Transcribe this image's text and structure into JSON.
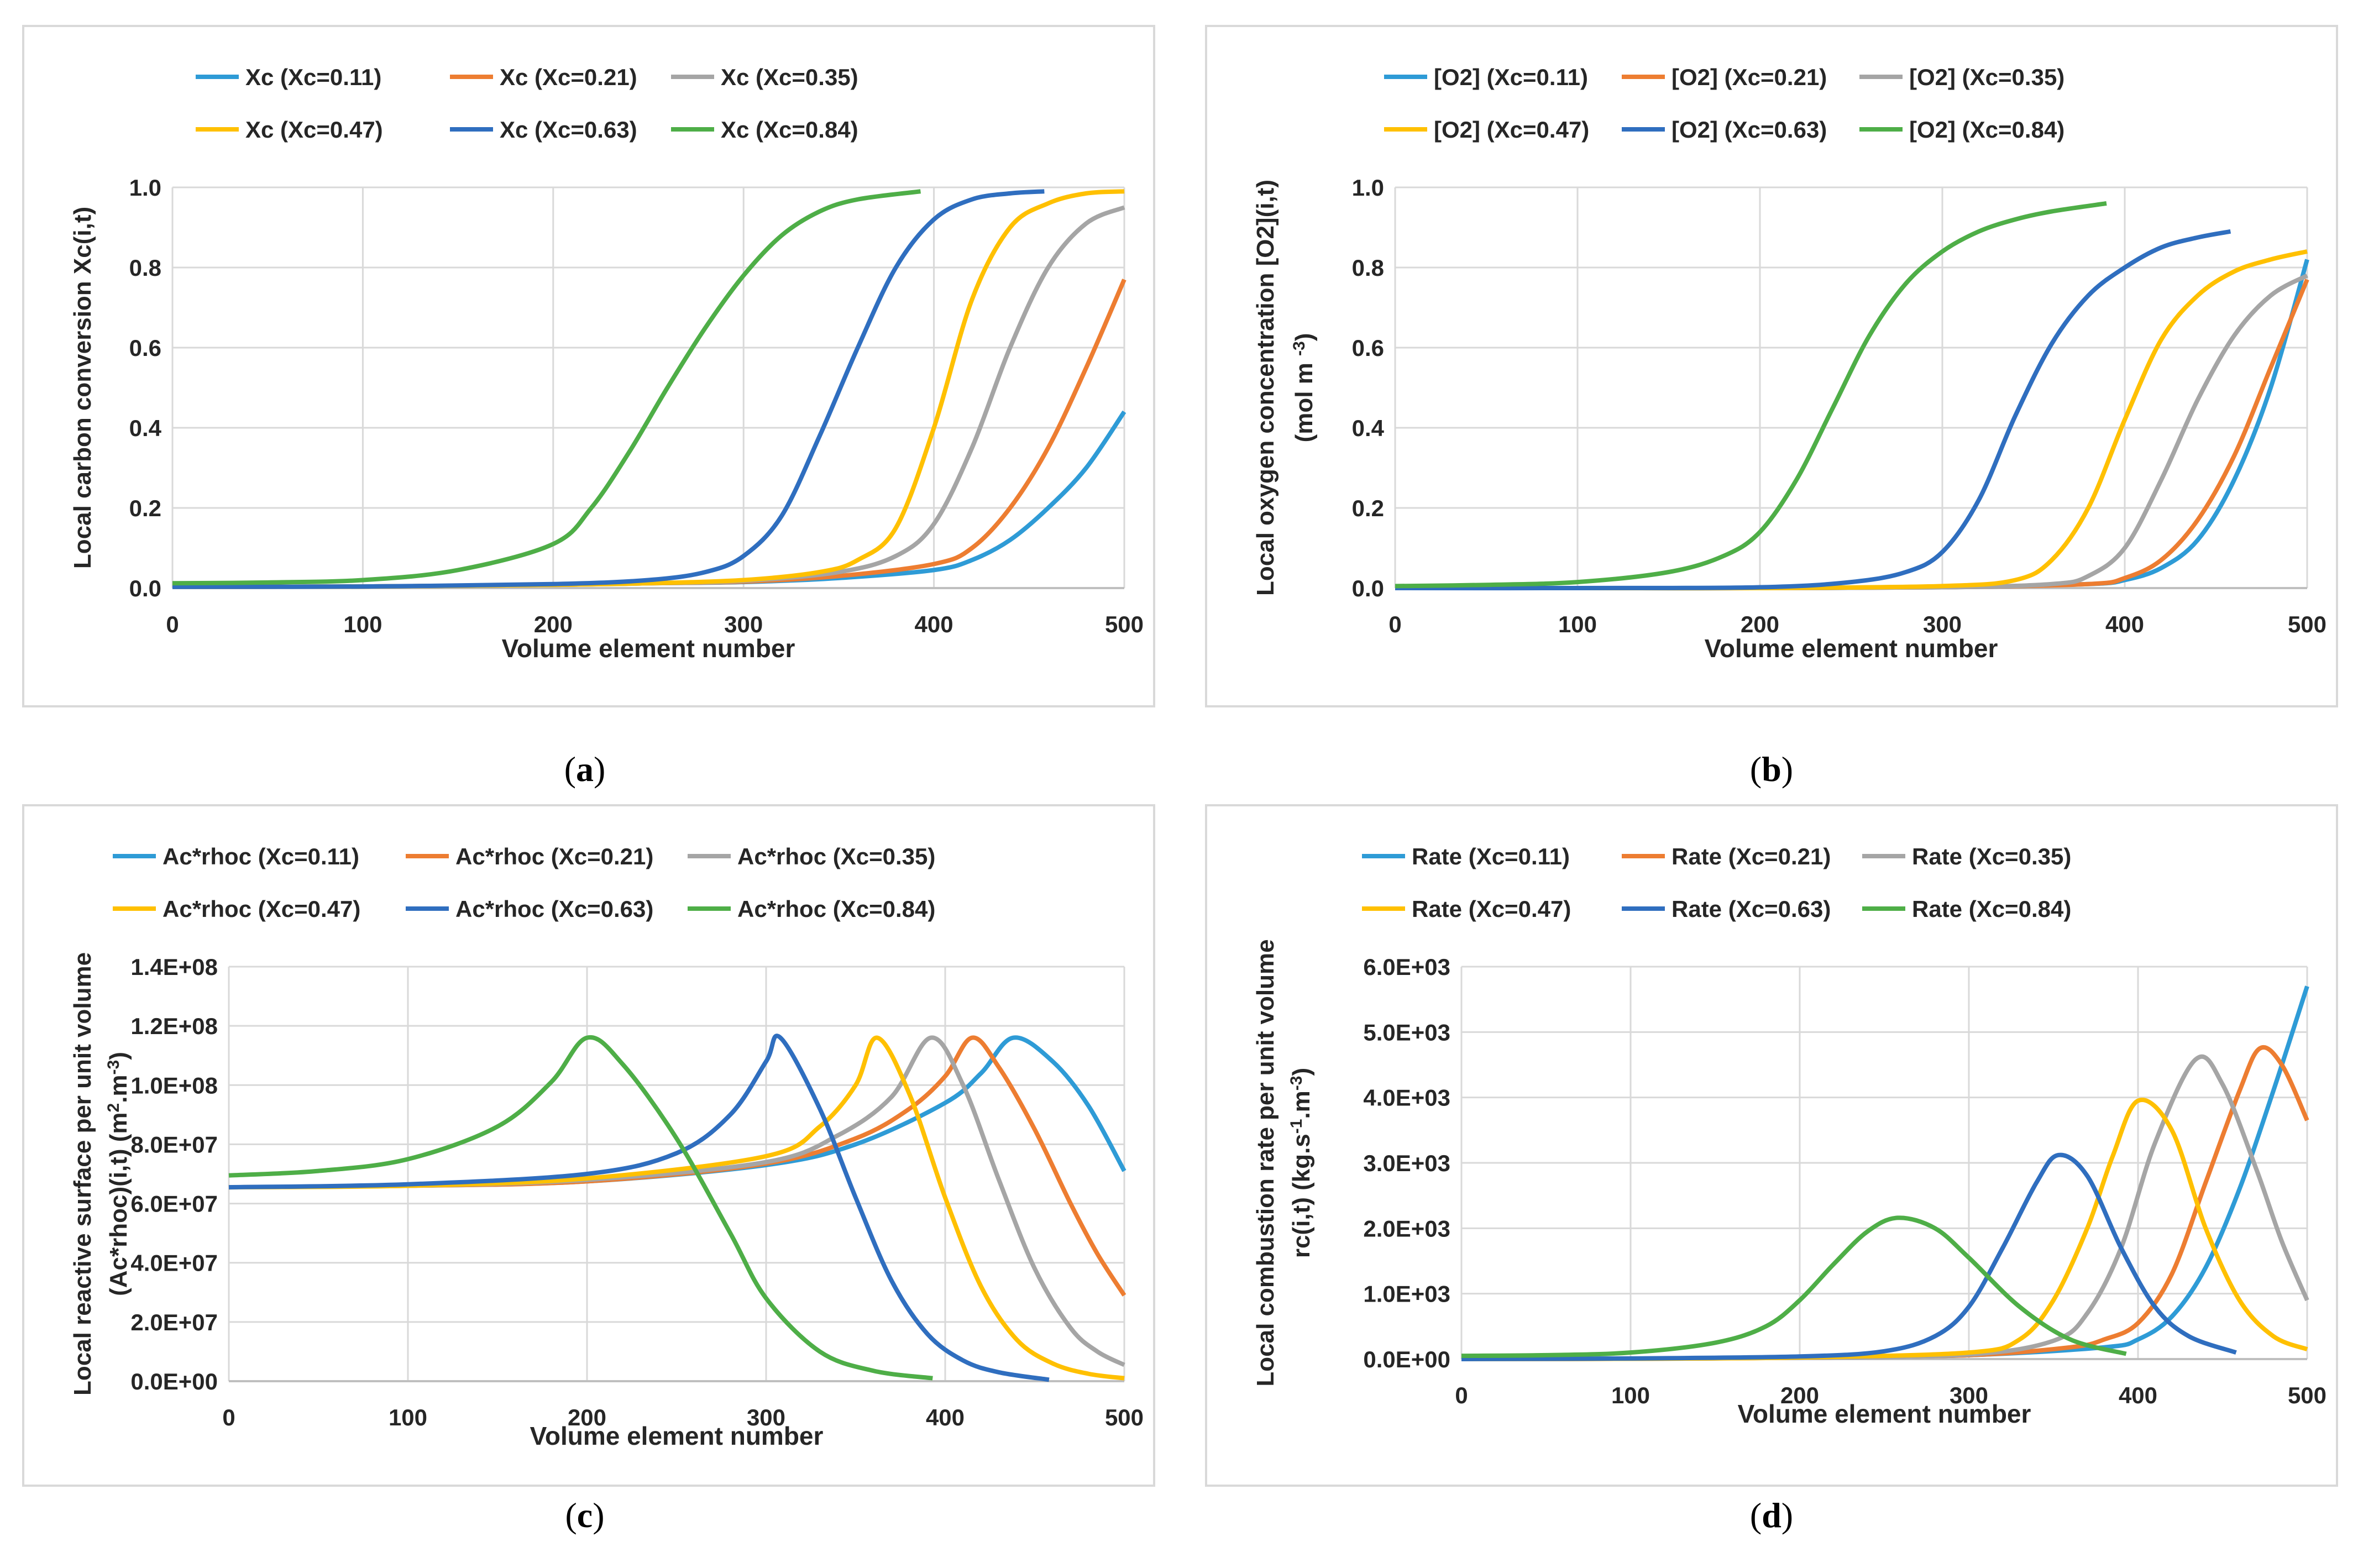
{
  "panels": [
    {
      "letter": "a",
      "paren_open": "(",
      "paren_close": ")"
    },
    {
      "letter": "b",
      "paren_open": "(",
      "paren_close": ")"
    },
    {
      "letter": "c",
      "paren_open": "(",
      "paren_close": ")"
    },
    {
      "letter": "d",
      "paren_open": "(",
      "paren_close": ")"
    }
  ],
  "series_colors": [
    "#2e9bd6",
    "#ed7d31",
    "#a5a5a5",
    "#ffc000",
    "#2f6ebf",
    "#4eae47"
  ],
  "chart_data": [
    {
      "type": "line",
      "title": "",
      "xlabel": "Volume element number",
      "ylabel": "Local carbon conversion Xc(i,t)",
      "xlim": [
        0,
        500
      ],
      "ylim": [
        0,
        1.0
      ],
      "xticks": [
        "0",
        "100",
        "200",
        "300",
        "400",
        "500"
      ],
      "yticks": [
        "0.0",
        "0.2",
        "0.4",
        "0.6",
        "0.8",
        "1.0"
      ],
      "x": [
        0,
        100,
        200,
        250,
        300,
        350,
        400,
        450,
        500
      ],
      "series": [
        {
          "name": "Xc (Xc=0.11)",
          "x": [
            0,
            100,
            200,
            250,
            300,
            350,
            400,
            420,
            440,
            460,
            480,
            500
          ],
          "values": [
            0.003,
            0.004,
            0.008,
            0.012,
            0.015,
            0.025,
            0.045,
            0.07,
            0.12,
            0.2,
            0.3,
            0.44
          ]
        },
        {
          "name": "Xc (Xc=0.21)",
          "x": [
            0,
            100,
            200,
            250,
            300,
            350,
            400,
            420,
            440,
            460,
            480,
            500
          ],
          "values": [
            0.003,
            0.004,
            0.008,
            0.012,
            0.016,
            0.03,
            0.06,
            0.1,
            0.2,
            0.35,
            0.55,
            0.77
          ]
        },
        {
          "name": "Xc (Xc=0.35)",
          "x": [
            0,
            100,
            200,
            250,
            300,
            350,
            380,
            400,
            420,
            440,
            460,
            480,
            500
          ],
          "values": [
            0.003,
            0.004,
            0.008,
            0.012,
            0.018,
            0.04,
            0.08,
            0.16,
            0.35,
            0.6,
            0.8,
            0.91,
            0.95
          ]
        },
        {
          "name": "Xc (Xc=0.47)",
          "x": [
            0,
            100,
            200,
            250,
            300,
            340,
            360,
            380,
            400,
            420,
            440,
            460,
            480,
            500
          ],
          "values": [
            0.003,
            0.004,
            0.008,
            0.012,
            0.02,
            0.04,
            0.07,
            0.15,
            0.4,
            0.72,
            0.9,
            0.96,
            0.985,
            0.99
          ]
        },
        {
          "name": "Xc (Xc=0.63)",
          "x": [
            0,
            100,
            200,
            250,
            280,
            300,
            320,
            340,
            360,
            380,
            400,
            420,
            440,
            458
          ],
          "values": [
            0.003,
            0.004,
            0.01,
            0.02,
            0.04,
            0.08,
            0.18,
            0.38,
            0.6,
            0.8,
            0.92,
            0.97,
            0.985,
            0.99
          ]
        },
        {
          "name": "Xc (Xc=0.84)",
          "x": [
            0,
            50,
            100,
            150,
            200,
            220,
            240,
            260,
            280,
            300,
            320,
            340,
            360,
            393
          ],
          "values": [
            0.012,
            0.014,
            0.02,
            0.045,
            0.11,
            0.2,
            0.34,
            0.5,
            0.65,
            0.78,
            0.88,
            0.94,
            0.97,
            0.99
          ]
        }
      ]
    },
    {
      "type": "line",
      "title": "",
      "xlabel": "Volume element number",
      "ylabel": "Local oxygen concentration [O2](i,t)",
      "ylabel_unit": "(mol m",
      "ylabel_unit_sup": "-3",
      "ylabel_unit_end": ")",
      "xlim": [
        0,
        500
      ],
      "ylim": [
        0,
        1.0
      ],
      "xticks": [
        "0",
        "100",
        "200",
        "300",
        "400",
        "500"
      ],
      "yticks": [
        "0.0",
        "0.2",
        "0.4",
        "0.6",
        "0.8",
        "1.0"
      ],
      "series": [
        {
          "name": "[O2] (Xc=0.11)",
          "x": [
            0,
            100,
            200,
            300,
            380,
            400,
            420,
            440,
            460,
            480,
            500
          ],
          "values": [
            0,
            0,
            0,
            0.002,
            0.01,
            0.02,
            0.05,
            0.12,
            0.27,
            0.5,
            0.82
          ]
        },
        {
          "name": "[O2] (Xc=0.21)",
          "x": [
            0,
            100,
            200,
            300,
            380,
            400,
            420,
            440,
            460,
            480,
            500
          ],
          "values": [
            0,
            0,
            0,
            0.002,
            0.01,
            0.025,
            0.07,
            0.17,
            0.33,
            0.55,
            0.77
          ]
        },
        {
          "name": "[O2] (Xc=0.35)",
          "x": [
            0,
            100,
            200,
            300,
            360,
            380,
            400,
            420,
            440,
            460,
            480,
            500
          ],
          "values": [
            0,
            0,
            0,
            0.002,
            0.01,
            0.03,
            0.1,
            0.27,
            0.47,
            0.63,
            0.73,
            0.78
          ]
        },
        {
          "name": "[O2] (Xc=0.47)",
          "x": [
            0,
            100,
            200,
            300,
            340,
            360,
            380,
            400,
            420,
            440,
            460,
            480,
            500
          ],
          "values": [
            0,
            0,
            0,
            0.005,
            0.02,
            0.07,
            0.2,
            0.42,
            0.62,
            0.73,
            0.79,
            0.82,
            0.84
          ]
        },
        {
          "name": "[O2] (Xc=0.63)",
          "x": [
            0,
            100,
            200,
            250,
            280,
            300,
            320,
            340,
            360,
            380,
            400,
            420,
            440,
            458
          ],
          "values": [
            0,
            0,
            0.002,
            0.015,
            0.04,
            0.09,
            0.22,
            0.43,
            0.61,
            0.73,
            0.8,
            0.85,
            0.875,
            0.89
          ]
        },
        {
          "name": "[O2] (Xc=0.84)",
          "x": [
            0,
            50,
            100,
            150,
            180,
            200,
            220,
            240,
            260,
            280,
            300,
            320,
            340,
            360,
            390
          ],
          "values": [
            0.005,
            0.008,
            0.015,
            0.04,
            0.08,
            0.14,
            0.27,
            0.45,
            0.63,
            0.76,
            0.84,
            0.89,
            0.92,
            0.94,
            0.96
          ]
        }
      ]
    },
    {
      "type": "line",
      "title": "",
      "xlabel": "Volume element number",
      "ylabel": "Local reactive surface per unit volume",
      "ylabel2": "(Ac*rhoc)(i,t)",
      "ylabel_unit": "(m",
      "ylabel_unit_sup1": "2",
      "ylabel_unit_mid": ".m",
      "ylabel_unit_sup2": "-3",
      "ylabel_unit_end": ")",
      "xlim": [
        0,
        500
      ],
      "ylim": [
        0,
        140000000
      ],
      "xticks": [
        "0",
        "100",
        "200",
        "300",
        "400",
        "500"
      ],
      "yticks": [
        "0.0E+00",
        "2.0E+07",
        "4.0E+07",
        "6.0E+07",
        "8.0E+07",
        "1.0E+08",
        "1.2E+08",
        "1.4E+08"
      ],
      "series": [
        {
          "name": "Ac*rhoc (Xc=0.11)",
          "x": [
            0,
            100,
            200,
            300,
            350,
            400,
            420,
            438,
            460,
            480,
            500
          ],
          "values": [
            65500000,
            66000000,
            67500000,
            73000000,
            80000000,
            94000000,
            104000000,
            116000000,
            108000000,
            93000000,
            71000000
          ]
        },
        {
          "name": "Ac*rhoc (Xc=0.21)",
          "x": [
            0,
            100,
            200,
            300,
            350,
            380,
            400,
            415,
            430,
            450,
            470,
            485,
            500
          ],
          "values": [
            65500000,
            66000000,
            67500000,
            73500000,
            82000000,
            92000000,
            103000000,
            116000000,
            106000000,
            85000000,
            60000000,
            43000000,
            29000000
          ]
        },
        {
          "name": "Ac*rhoc (Xc=0.35)",
          "x": [
            0,
            100,
            200,
            300,
            340,
            370,
            392,
            410,
            430,
            450,
            470,
            485,
            500
          ],
          "values": [
            65500000,
            66000000,
            68000000,
            74000000,
            83000000,
            96000000,
            116000000,
            100000000,
            68000000,
            38000000,
            18000000,
            10000000,
            5500000
          ]
        },
        {
          "name": "Ac*rhoc (Xc=0.47)",
          "x": [
            0,
            100,
            200,
            300,
            330,
            350,
            362,
            380,
            400,
            420,
            440,
            460,
            480,
            500
          ],
          "values": [
            65500000,
            66000000,
            68500000,
            76000000,
            86000000,
            100000000,
            116000000,
            97000000,
            62000000,
            32000000,
            14000000,
            6000000,
            2500000,
            1000000
          ]
        },
        {
          "name": "Ac*rhoc (Xc=0.63)",
          "x": [
            0,
            100,
            200,
            250,
            280,
            300,
            308,
            330,
            350,
            370,
            390,
            410,
            430,
            458
          ],
          "values": [
            65500000,
            66500000,
            70000000,
            77000000,
            90000000,
            108000000,
            116000000,
            92000000,
            62000000,
            34000000,
            16000000,
            7000000,
            3000000,
            500000
          ]
        },
        {
          "name": "Ac*rhoc (Xc=0.84)",
          "x": [
            0,
            50,
            100,
            150,
            180,
            200,
            220,
            250,
            280,
            300,
            330,
            360,
            393
          ],
          "values": [
            69500000,
            71000000,
            75000000,
            86000000,
            101000000,
            116000000,
            107000000,
            82000000,
            50000000,
            28000000,
            10000000,
            3500000,
            1000000
          ]
        }
      ]
    },
    {
      "type": "line",
      "title": "",
      "xlabel": "Volume element number",
      "ylabel": "Local combustion rate per unit volume",
      "ylabel2": "rc(i,t)",
      "ylabel_unit": "(kg.s",
      "ylabel_unit_sup1": "-1",
      "ylabel_unit_mid": ".m",
      "ylabel_unit_sup2": "-3",
      "ylabel_unit_end": ")",
      "xlim": [
        0,
        500
      ],
      "ylim": [
        0,
        6000
      ],
      "xticks": [
        "0",
        "100",
        "200",
        "300",
        "400",
        "500"
      ],
      "yticks": [
        "0.0E+00",
        "1.0E+03",
        "2.0E+03",
        "3.0E+03",
        "4.0E+03",
        "5.0E+03",
        "6.0E+03"
      ],
      "series": [
        {
          "name": "Rate (Xc=0.11)",
          "x": [
            0,
            100,
            200,
            300,
            380,
            400,
            420,
            440,
            460,
            480,
            500
          ],
          "values": [
            0,
            5,
            20,
            60,
            180,
            300,
            650,
            1400,
            2600,
            4100,
            5700
          ]
        },
        {
          "name": "Rate (Xc=0.21)",
          "x": [
            0,
            100,
            200,
            300,
            360,
            380,
            400,
            420,
            440,
            460,
            472,
            485,
            500
          ],
          "values": [
            0,
            5,
            20,
            60,
            180,
            300,
            550,
            1300,
            2700,
            4100,
            4750,
            4500,
            3650
          ]
        },
        {
          "name": "Rate (Xc=0.35)",
          "x": [
            0,
            100,
            200,
            300,
            350,
            370,
            390,
            410,
            434,
            450,
            470,
            485,
            500
          ],
          "values": [
            0,
            5,
            20,
            70,
            280,
            700,
            1700,
            3300,
            4580,
            4200,
            2900,
            1800,
            900
          ]
        },
        {
          "name": "Rate (Xc=0.47)",
          "x": [
            0,
            100,
            200,
            300,
            330,
            350,
            370,
            385,
            400,
            420,
            440,
            460,
            480,
            500
          ],
          "values": [
            0,
            5,
            25,
            100,
            300,
            900,
            2000,
            3100,
            3950,
            3500,
            2000,
            900,
            350,
            150
          ]
        },
        {
          "name": "Rate (Xc=0.63)",
          "x": [
            0,
            100,
            200,
            250,
            280,
            300,
            320,
            340,
            353,
            370,
            390,
            410,
            430,
            458
          ],
          "values": [
            0,
            10,
            40,
            120,
            350,
            800,
            1700,
            2700,
            3120,
            2800,
            1700,
            800,
            350,
            100
          ]
        },
        {
          "name": "Rate (Xc=0.84)",
          "x": [
            0,
            50,
            100,
            150,
            180,
            200,
            220,
            240,
            258,
            280,
            300,
            330,
            360,
            393
          ],
          "values": [
            50,
            60,
            100,
            250,
            500,
            900,
            1450,
            1950,
            2160,
            2000,
            1550,
            800,
            300,
            80
          ]
        }
      ]
    }
  ]
}
